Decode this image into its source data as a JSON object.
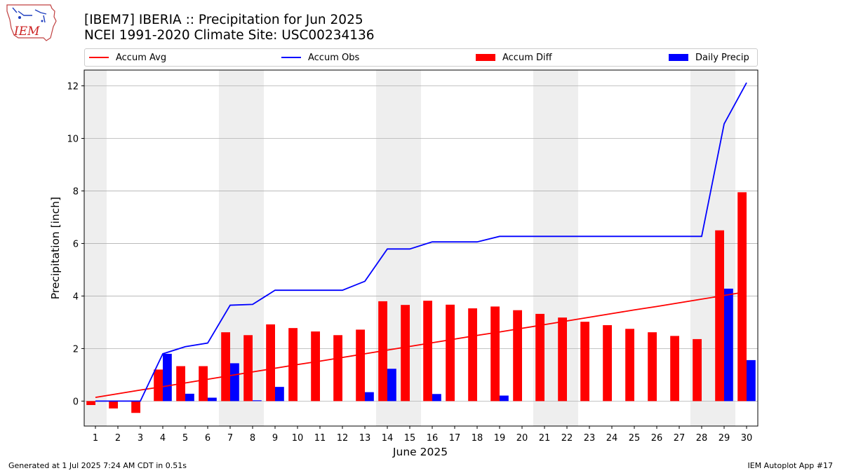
{
  "header": {
    "logo_text": "IEM",
    "title_line1": "[IBEM7] IBERIA :: Precipitation for Jun 2025",
    "title_line2": "NCEI 1991-2020 Climate Site: USC00234136"
  },
  "footer": {
    "generated": "Generated at 1 Jul 2025 7:24 AM CDT in 0.51s",
    "app": "IEM Autoplot App #17"
  },
  "colors": {
    "accum_avg": "#ff0000",
    "accum_obs": "#0000ff",
    "accum_diff": "#ff0000",
    "daily_precip": "#0000ff",
    "weekend_shade": "#eeeeee",
    "grid": "#b0b0b0"
  },
  "chart_data": {
    "type": "bar",
    "xlabel": "June 2025",
    "ylabel": "Precipitation [inch]",
    "ylim": [
      -0.95,
      12.6
    ],
    "yticks": [
      0,
      2,
      4,
      6,
      8,
      10,
      12
    ],
    "grid": "horizontal",
    "legend_placement": "top",
    "days": [
      1,
      2,
      3,
      4,
      5,
      6,
      7,
      8,
      9,
      10,
      11,
      12,
      13,
      14,
      15,
      16,
      17,
      18,
      19,
      20,
      21,
      22,
      23,
      24,
      25,
      26,
      27,
      28,
      29,
      30
    ],
    "weekend_days": [
      1,
      7,
      8,
      14,
      15,
      21,
      22,
      28,
      29
    ],
    "series": [
      {
        "name": "Accum Avg",
        "kind": "line",
        "values": [
          0.14,
          0.28,
          0.42,
          0.55,
          0.69,
          0.83,
          0.97,
          1.11,
          1.25,
          1.39,
          1.52,
          1.66,
          1.8,
          1.94,
          2.08,
          2.22,
          2.36,
          2.5,
          2.63,
          2.77,
          2.91,
          3.05,
          3.19,
          3.33,
          3.47,
          3.6,
          3.74,
          3.88,
          4.02,
          4.16
        ]
      },
      {
        "name": "Accum Obs",
        "kind": "line",
        "values": [
          0.0,
          0.0,
          0.0,
          1.8,
          2.07,
          2.21,
          3.65,
          3.68,
          4.22,
          4.22,
          4.22,
          4.22,
          4.56,
          5.79,
          5.79,
          6.06,
          6.06,
          6.06,
          6.27,
          6.27,
          6.27,
          6.27,
          6.27,
          6.27,
          6.27,
          6.27,
          6.27,
          6.27,
          10.55,
          12.12
        ]
      },
      {
        "name": "Accum Diff",
        "kind": "bar",
        "values": [
          -0.15,
          -0.28,
          -0.45,
          1.2,
          1.33,
          1.33,
          2.62,
          2.51,
          2.92,
          2.78,
          2.65,
          2.51,
          2.72,
          3.8,
          3.66,
          3.82,
          3.67,
          3.53,
          3.6,
          3.46,
          3.32,
          3.18,
          3.02,
          2.89,
          2.75,
          2.62,
          2.48,
          2.36,
          6.5,
          7.95
        ]
      },
      {
        "name": "Daily Precip",
        "kind": "bar",
        "values": [
          0.02,
          0.0,
          0.0,
          1.8,
          0.28,
          0.13,
          1.44,
          0.03,
          0.54,
          0.0,
          0.0,
          0.0,
          0.34,
          1.23,
          0.0,
          0.27,
          0.0,
          0.0,
          0.21,
          0.0,
          0.0,
          0.0,
          0.0,
          0.0,
          0.0,
          0.0,
          0.0,
          0.0,
          4.28,
          1.56
        ]
      }
    ]
  }
}
